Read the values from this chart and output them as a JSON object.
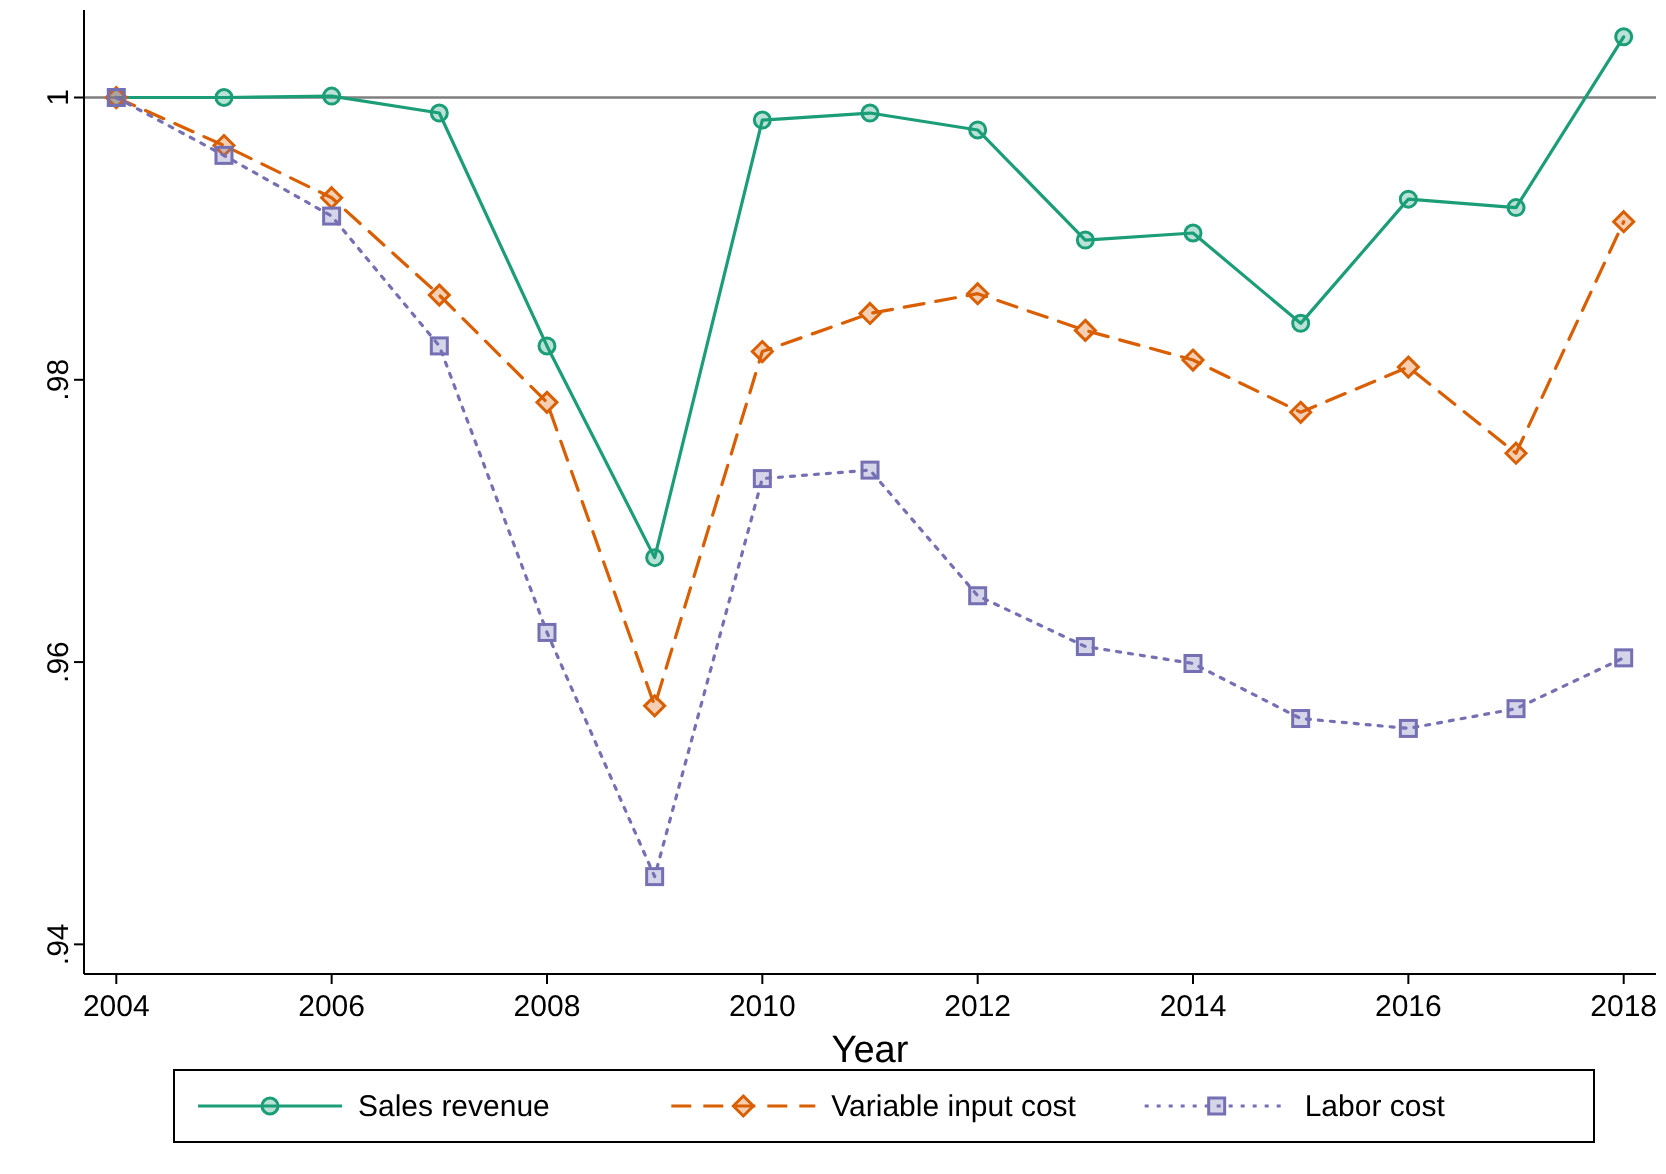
{
  "chart_data": {
    "type": "line",
    "xlabel": "Year",
    "x": [
      2004,
      2005,
      2006,
      2007,
      2008,
      2009,
      2010,
      2011,
      2012,
      2013,
      2014,
      2015,
      2016,
      2017,
      2018
    ],
    "series": [
      {
        "name": "Sales revenue",
        "color": "#1b9e77",
        "marker": "circle",
        "line_style": "solid",
        "values": [
          1.0,
          1.0,
          1.0001,
          0.9989,
          0.9824,
          0.9674,
          0.9984,
          0.9989,
          0.9977,
          0.9899,
          0.9904,
          0.984,
          0.9928,
          0.9922,
          1.0043
        ]
      },
      {
        "name": "Variable input cost",
        "color": "#d95f02",
        "marker": "diamond",
        "line_style": "dashed",
        "values": [
          1.0,
          0.9966,
          0.9929,
          0.986,
          0.9784,
          0.9569,
          0.982,
          0.9847,
          0.9861,
          0.9835,
          0.9814,
          0.9777,
          0.9809,
          0.9748,
          0.9912
        ]
      },
      {
        "name": "Labor cost",
        "color": "#7570b3",
        "marker": "square",
        "line_style": "dotted",
        "values": [
          1.0,
          0.9959,
          0.9916,
          0.9824,
          0.9621,
          0.9448,
          0.973,
          0.9736,
          0.9647,
          0.9611,
          0.9599,
          0.956,
          0.9553,
          0.9567,
          0.9603
        ]
      }
    ],
    "xlim": [
      2003.7,
      2018.3
    ],
    "xticks": [
      2004,
      2006,
      2008,
      2010,
      2012,
      2014,
      2016,
      2018
    ],
    "ylim": [
      0.9379,
      1.0062
    ],
    "yticks": [
      {
        "value": 0.94,
        "label": ".94"
      },
      {
        "value": 0.96,
        "label": ".96"
      },
      {
        "value": 0.98,
        "label": ".98"
      },
      {
        "value": 1,
        "label": "1"
      }
    ],
    "ref_lines": [
      {
        "axis": "y",
        "value": 1,
        "color": "#7f7f7f"
      }
    ],
    "grid": false,
    "legend": "bottom"
  }
}
